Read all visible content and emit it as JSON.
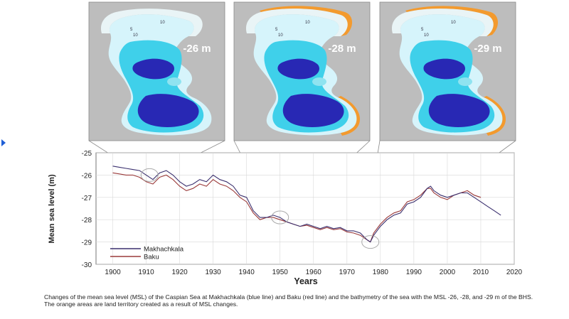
{
  "caption": "Changes of the mean sea level (MSL) of the Caspian Sea at Makhachkala (blue line) and Baku (red line) and the bathymetry of the sea with the MSL -26, -28, and -29 m of the BHS. The orange areas are land territory created as a result of MSL changes.",
  "colors": {
    "makhachkala": "#3a2f6e",
    "baku": "#9a3a3a",
    "land_gray": "#bdbdbd",
    "shallow_water": "#d6f4fb",
    "mid_water": "#3fd0ea",
    "deep_water": "#2828b4",
    "exposed_land": "#f39a2e",
    "accent_marker": "#1f5fd6"
  },
  "maps": [
    {
      "label": "-26 m",
      "level": -26,
      "exposed_land": false,
      "contours": [
        "5",
        "10",
        "10"
      ]
    },
    {
      "label": "-28 m",
      "level": -28,
      "exposed_land": true,
      "contours": [
        "5",
        "10",
        "10"
      ]
    },
    {
      "label": "-29 m",
      "level": -29,
      "exposed_land": true,
      "contours": [
        "5",
        "10",
        "10"
      ]
    }
  ],
  "chart_data": {
    "type": "line",
    "xlabel": "Years",
    "ylabel": "Mean sea level (m)",
    "xlim": [
      1895,
      2020
    ],
    "ylim": [
      -30,
      -25
    ],
    "xticks": [
      1900,
      1910,
      1920,
      1930,
      1940,
      1950,
      1960,
      1970,
      1980,
      1990,
      2000,
      2010,
      2020
    ],
    "yticks": [
      -25,
      -26,
      -27,
      -28,
      -29,
      -30
    ],
    "grid": true,
    "legend": "bottom-left",
    "highlights": [
      {
        "year": 1911,
        "level": -26.0
      },
      {
        "year": 1950,
        "level": -27.9
      },
      {
        "year": 1977,
        "level": -29.0
      }
    ],
    "series": [
      {
        "name": "Makhachkala",
        "x": [
          1900,
          1902,
          1904,
          1906,
          1908,
          1910,
          1912,
          1914,
          1916,
          1918,
          1920,
          1922,
          1924,
          1926,
          1928,
          1930,
          1932,
          1934,
          1936,
          1938,
          1940,
          1942,
          1944,
          1946,
          1948,
          1950,
          1952,
          1954,
          1956,
          1958,
          1960,
          1962,
          1964,
          1966,
          1968,
          1970,
          1972,
          1974,
          1976,
          1977,
          1978,
          1980,
          1982,
          1984,
          1986,
          1988,
          1990,
          1992,
          1994,
          1995,
          1996,
          1998,
          2000,
          2002,
          2004,
          2006,
          2008,
          2010,
          2012,
          2014,
          2016
        ],
        "values": [
          -25.6,
          -25.65,
          -25.7,
          -25.75,
          -25.8,
          -26.0,
          -26.2,
          -25.9,
          -25.8,
          -26.0,
          -26.3,
          -26.5,
          -26.4,
          -26.2,
          -26.3,
          -26.0,
          -26.2,
          -26.3,
          -26.5,
          -26.9,
          -27.0,
          -27.6,
          -27.9,
          -27.9,
          -27.8,
          -27.9,
          -28.1,
          -28.2,
          -28.3,
          -28.2,
          -28.3,
          -28.4,
          -28.3,
          -28.4,
          -28.35,
          -28.5,
          -28.5,
          -28.6,
          -28.9,
          -29.0,
          -28.7,
          -28.3,
          -28.0,
          -27.8,
          -27.7,
          -27.3,
          -27.2,
          -27.0,
          -26.6,
          -26.5,
          -26.7,
          -26.9,
          -27.0,
          -26.9,
          -26.8,
          -26.8,
          -27.0,
          -27.2,
          -27.4,
          -27.6,
          -27.8
        ]
      },
      {
        "name": "Baku",
        "x": [
          1900,
          1902,
          1904,
          1906,
          1908,
          1910,
          1912,
          1914,
          1916,
          1918,
          1920,
          1922,
          1924,
          1926,
          1928,
          1930,
          1932,
          1934,
          1936,
          1938,
          1940,
          1942,
          1944,
          1946,
          1948,
          1950,
          1952,
          1954,
          1956,
          1958,
          1960,
          1962,
          1964,
          1966,
          1968,
          1970,
          1972,
          1974,
          1976,
          1977,
          1978,
          1980,
          1982,
          1984,
          1986,
          1988,
          1990,
          1992,
          1994,
          1995,
          1996,
          1998,
          2000,
          2002,
          2004,
          2006,
          2008,
          2010
        ],
        "values": [
          -25.9,
          -25.95,
          -26.0,
          -26.0,
          -26.1,
          -26.3,
          -26.4,
          -26.1,
          -26.0,
          -26.2,
          -26.5,
          -26.7,
          -26.6,
          -26.4,
          -26.5,
          -26.2,
          -26.4,
          -26.5,
          -26.7,
          -27.0,
          -27.2,
          -27.7,
          -28.0,
          -27.9,
          -27.9,
          -28.0,
          -28.1,
          -28.2,
          -28.3,
          -28.25,
          -28.35,
          -28.45,
          -28.35,
          -28.45,
          -28.4,
          -28.55,
          -28.6,
          -28.7,
          -28.9,
          -29.0,
          -28.6,
          -28.2,
          -27.9,
          -27.7,
          -27.6,
          -27.2,
          -27.1,
          -26.9,
          -26.6,
          -26.6,
          -26.8,
          -27.0,
          -27.1,
          -26.9,
          -26.8,
          -26.7,
          -26.9,
          -27.0
        ]
      }
    ]
  }
}
